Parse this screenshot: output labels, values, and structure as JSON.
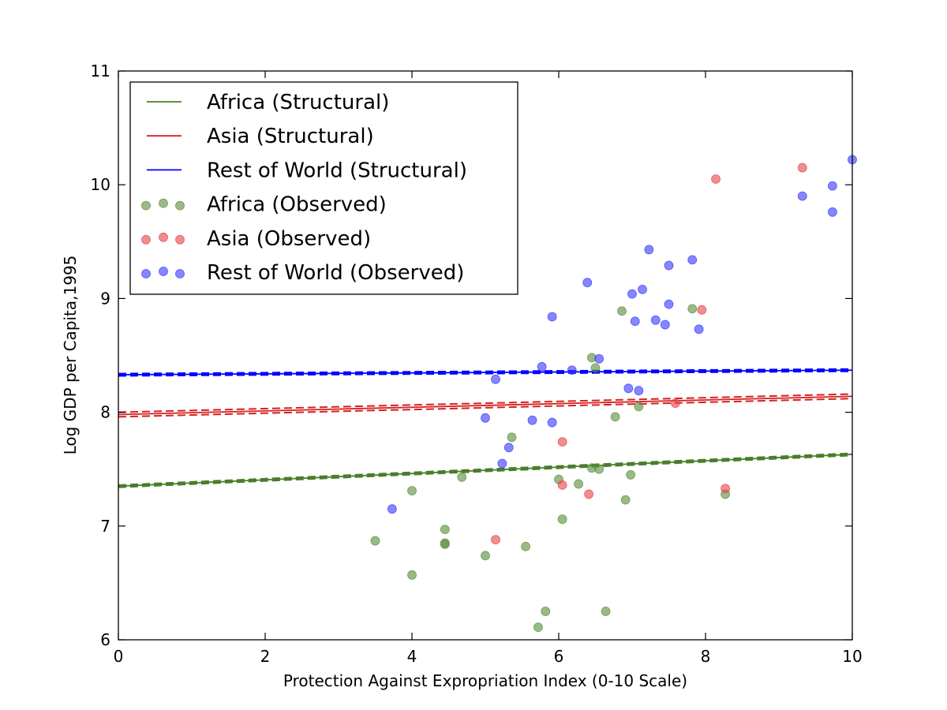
{
  "chart_data": {
    "type": "scatter",
    "title": "",
    "xlabel": "Protection Against Expropriation Index (0-10 Scale)",
    "ylabel": "Log GDP per Capita,1995",
    "xlim": [
      0,
      10
    ],
    "ylim": [
      6,
      11
    ],
    "xticks": [
      "0",
      "2",
      "4",
      "6",
      "8",
      "10"
    ],
    "yticks": [
      "6",
      "7",
      "8",
      "9",
      "10",
      "11"
    ],
    "grid": false,
    "legend_position": "top-left",
    "lines": [
      {
        "name": "Africa (Structural)",
        "color": "#4a7d2a",
        "x": [
          0,
          10
        ],
        "y": [
          7.35,
          7.63
        ],
        "band": 0.01
      },
      {
        "name": "Asia (Structural)",
        "color": "#d62020",
        "x": [
          0,
          10
        ],
        "y": [
          7.98,
          8.14
        ],
        "band": 0.02
      },
      {
        "name": "Rest of World (Structural)",
        "color": "#0000ff",
        "x": [
          0,
          10
        ],
        "y": [
          8.33,
          8.37
        ],
        "band": 0.01
      }
    ],
    "series": [
      {
        "name": "Africa (Observed)",
        "color": "#5a8f3c",
        "points": [
          [
            3.5,
            6.87
          ],
          [
            4.0,
            7.31
          ],
          [
            4.0,
            6.57
          ],
          [
            4.45,
            6.97
          ],
          [
            4.45,
            6.84
          ],
          [
            4.45,
            6.85
          ],
          [
            4.68,
            7.43
          ],
          [
            5.0,
            6.74
          ],
          [
            5.36,
            7.78
          ],
          [
            5.55,
            6.82
          ],
          [
            5.72,
            6.11
          ],
          [
            5.82,
            6.25
          ],
          [
            6.0,
            7.41
          ],
          [
            6.05,
            7.06
          ],
          [
            6.27,
            7.37
          ],
          [
            6.45,
            7.51
          ],
          [
            6.45,
            8.48
          ],
          [
            6.5,
            8.39
          ],
          [
            6.55,
            7.5
          ],
          [
            6.64,
            6.25
          ],
          [
            6.77,
            7.96
          ],
          [
            6.86,
            8.89
          ],
          [
            6.91,
            7.23
          ],
          [
            6.98,
            7.45
          ],
          [
            7.09,
            8.05
          ],
          [
            7.82,
            8.91
          ],
          [
            8.27,
            7.28
          ]
        ]
      },
      {
        "name": "Asia (Observed)",
        "color": "#e8464a",
        "points": [
          [
            5.14,
            6.88
          ],
          [
            6.05,
            7.74
          ],
          [
            6.05,
            7.36
          ],
          [
            6.41,
            7.28
          ],
          [
            7.59,
            8.08
          ],
          [
            7.95,
            8.9
          ],
          [
            8.14,
            10.05
          ],
          [
            8.27,
            7.33
          ],
          [
            9.32,
            10.15
          ]
        ]
      },
      {
        "name": "Rest of World (Observed)",
        "color": "#3c3cff",
        "points": [
          [
            3.73,
            7.15
          ],
          [
            5.0,
            7.95
          ],
          [
            5.14,
            8.29
          ],
          [
            5.23,
            7.55
          ],
          [
            5.32,
            7.69
          ],
          [
            5.64,
            7.93
          ],
          [
            5.77,
            8.4
          ],
          [
            5.91,
            8.84
          ],
          [
            5.91,
            7.91
          ],
          [
            6.18,
            8.37
          ],
          [
            6.39,
            9.14
          ],
          [
            6.55,
            8.47
          ],
          [
            6.95,
            8.21
          ],
          [
            7.0,
            9.04
          ],
          [
            7.04,
            8.8
          ],
          [
            7.09,
            8.19
          ],
          [
            7.14,
            9.08
          ],
          [
            7.23,
            9.43
          ],
          [
            7.32,
            8.81
          ],
          [
            7.45,
            8.77
          ],
          [
            7.5,
            9.29
          ],
          [
            7.5,
            8.95
          ],
          [
            7.82,
            9.34
          ],
          [
            7.91,
            8.73
          ],
          [
            9.32,
            9.9
          ],
          [
            9.73,
            9.99
          ],
          [
            9.73,
            9.76
          ],
          [
            10.0,
            10.22
          ]
        ]
      }
    ]
  }
}
